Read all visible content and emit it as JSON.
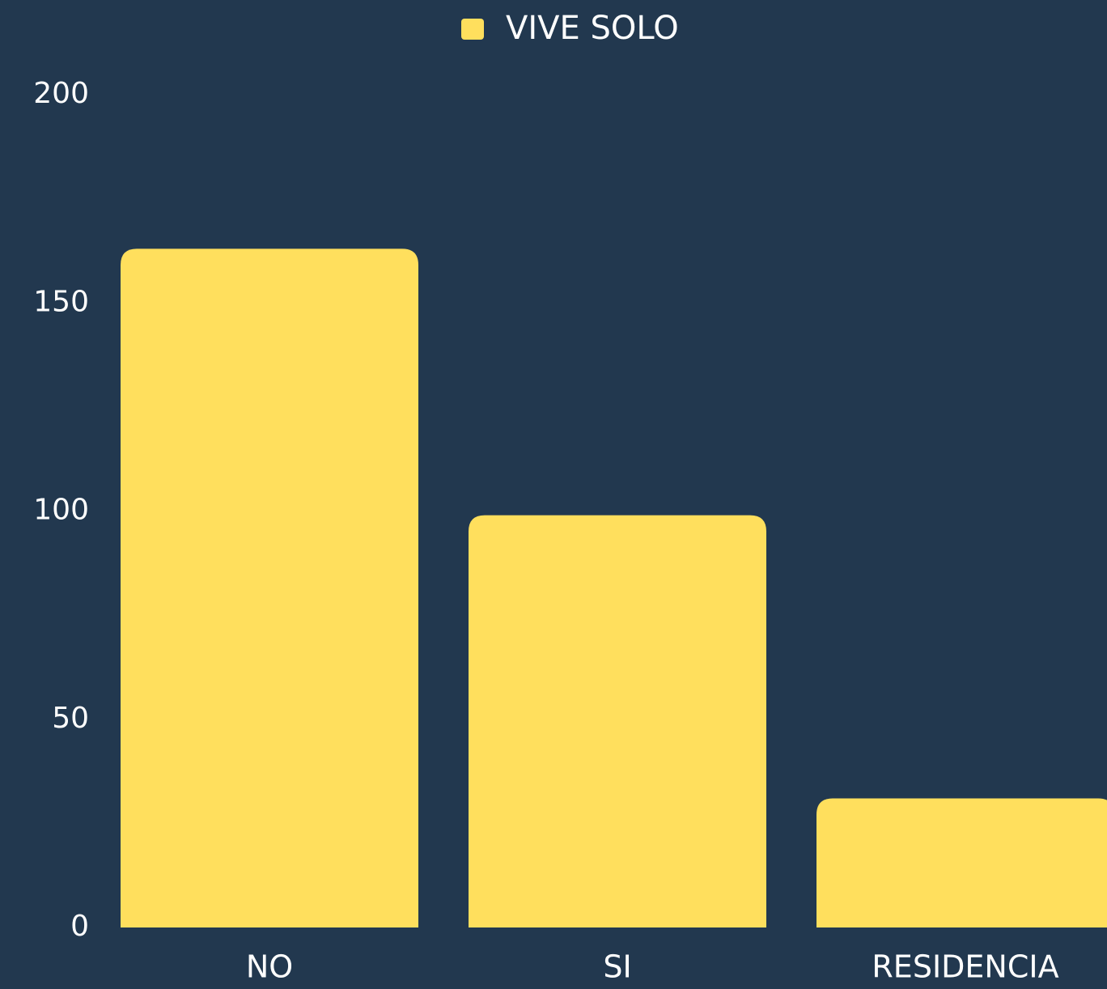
{
  "chart_data": {
    "type": "bar",
    "categories": [
      "NO",
      "SI",
      "RESIDENCIA"
    ],
    "series": [
      {
        "name": "VIVE SOLO",
        "color": "#ffdf5d",
        "values": [
          163,
          99,
          31
        ]
      }
    ],
    "ylim": [
      0,
      200
    ],
    "yticks": [
      0,
      50,
      100,
      150,
      200
    ],
    "grid": false,
    "legend": "top"
  }
}
